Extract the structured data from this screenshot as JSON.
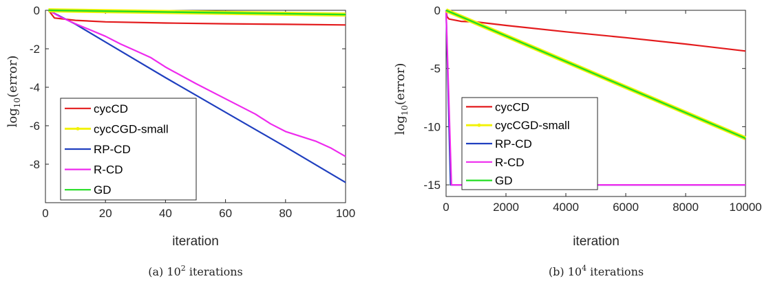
{
  "chart_data": [
    {
      "type": "line",
      "caption_label": "(a)",
      "caption_text": "10",
      "caption_exp": "2",
      "caption_suffix": " iterations",
      "xlabel": "iteration",
      "ylabel_main": "log",
      "ylabel_sub": "10",
      "ylabel_rest": "(error)",
      "xlim": [
        0,
        100
      ],
      "ylim": [
        -10,
        0
      ],
      "xticks": [
        0,
        20,
        40,
        60,
        80,
        100
      ],
      "yticks": [
        0,
        -2,
        -4,
        -6,
        -8
      ],
      "ytick_labels": [
        "0",
        "-2",
        "-4",
        "-6",
        "-8"
      ],
      "grid": false,
      "legend_position": "bottom-left",
      "series": [
        {
          "name": "cycCD",
          "color": "#e31a1c",
          "points": [
            [
              1,
              0
            ],
            [
              3,
              -0.4
            ],
            [
              10,
              -0.52
            ],
            [
              20,
              -0.6
            ],
            [
              40,
              -0.66
            ],
            [
              60,
              -0.7
            ],
            [
              80,
              -0.73
            ],
            [
              100,
              -0.76
            ]
          ]
        },
        {
          "name": "cycCGD-small",
          "color": "#f2f20a",
          "points": [
            [
              1,
              0
            ],
            [
              100,
              -0.22
            ]
          ]
        },
        {
          "name": "RP-CD",
          "color": "#1f3fbf",
          "points": [
            [
              1,
              0
            ],
            [
              10,
              -0.72
            ],
            [
              20,
              -1.65
            ],
            [
              40,
              -3.5
            ],
            [
              60,
              -5.3
            ],
            [
              80,
              -7.1
            ],
            [
              100,
              -8.95
            ]
          ]
        },
        {
          "name": "R-CD",
          "color": "#ee2aee",
          "points": [
            [
              1,
              0
            ],
            [
              5,
              -0.35
            ],
            [
              10,
              -0.7
            ],
            [
              20,
              -1.35
            ],
            [
              25,
              -1.75
            ],
            [
              30,
              -2.1
            ],
            [
              35,
              -2.45
            ],
            [
              40,
              -2.95
            ],
            [
              50,
              -3.8
            ],
            [
              60,
              -4.6
            ],
            [
              70,
              -5.4
            ],
            [
              75,
              -5.9
            ],
            [
              80,
              -6.3
            ],
            [
              90,
              -6.8
            ],
            [
              95,
              -7.15
            ],
            [
              100,
              -7.6
            ]
          ]
        },
        {
          "name": "GD",
          "color": "#22dd22",
          "points": [
            [
              1,
              0
            ],
            [
              100,
              -0.22
            ]
          ]
        }
      ]
    },
    {
      "type": "line",
      "caption_label": "(b)",
      "caption_text": "10",
      "caption_exp": "4",
      "caption_suffix": " iterations",
      "xlabel": "iteration",
      "ylabel_main": "log",
      "ylabel_sub": "10",
      "ylabel_rest": "(error)",
      "xlim": [
        0,
        10000
      ],
      "ylim": [
        -16,
        0
      ],
      "xticks": [
        0,
        2000,
        4000,
        6000,
        8000,
        10000
      ],
      "yticks": [
        0,
        -5,
        -10,
        -15
      ],
      "ytick_labels": [
        "0",
        "-5",
        "-10",
        "-15"
      ],
      "grid": false,
      "legend_position": "middle-left",
      "series": [
        {
          "name": "cycCD",
          "color": "#e31a1c",
          "points": [
            [
              0,
              0
            ],
            [
              30,
              -0.55
            ],
            [
              100,
              -0.75
            ],
            [
              500,
              -0.95
            ],
            [
              1000,
              -1.0
            ],
            [
              2000,
              -1.3
            ],
            [
              4000,
              -1.85
            ],
            [
              6000,
              -2.35
            ],
            [
              8000,
              -2.9
            ],
            [
              10000,
              -3.5
            ]
          ]
        },
        {
          "name": "cycCGD-small",
          "color": "#f2f20a",
          "points": [
            [
              0,
              0
            ],
            [
              10000,
              -11
            ]
          ]
        },
        {
          "name": "RP-CD",
          "color": "#1f3fbf",
          "points": [
            [
              0,
              0
            ],
            [
              150,
              -15
            ],
            [
              10000,
              -15
            ]
          ]
        },
        {
          "name": "R-CD",
          "color": "#ee2aee",
          "points": [
            [
              0,
              0
            ],
            [
              180,
              -15
            ],
            [
              10000,
              -15
            ]
          ]
        },
        {
          "name": "GD",
          "color": "#22dd22",
          "points": [
            [
              0,
              0
            ],
            [
              10000,
              -11
            ]
          ]
        }
      ]
    }
  ]
}
